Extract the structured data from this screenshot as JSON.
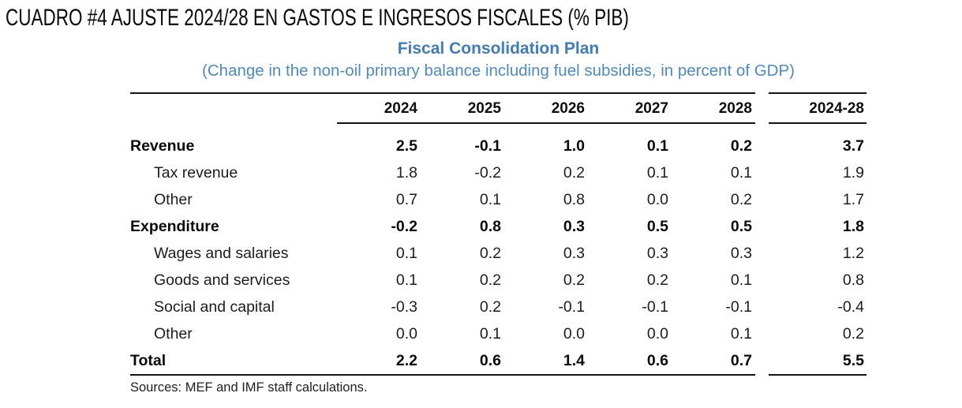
{
  "page": {
    "heading": "CUADRO #4 AJUSTE 2024/28 EN GASTOS E INGRESOS FISCALES (% PIB)"
  },
  "chart_data": {
    "type": "table",
    "title": "Fiscal Consolidation Plan",
    "subtitle": "(Change in the non-oil primary balance including fuel subsidies, in percent of GDP)",
    "columns": [
      "2024",
      "2025",
      "2026",
      "2027",
      "2028",
      "2024-28"
    ],
    "rows": [
      {
        "label": "Revenue",
        "bold": true,
        "indent": false,
        "values": [
          "2.5",
          "-0.1",
          "1.0",
          "0.1",
          "0.2",
          "3.7"
        ]
      },
      {
        "label": "Tax revenue",
        "bold": false,
        "indent": true,
        "values": [
          "1.8",
          "-0.2",
          "0.2",
          "0.1",
          "0.1",
          "1.9"
        ]
      },
      {
        "label": "Other",
        "bold": false,
        "indent": true,
        "values": [
          "0.7",
          "0.1",
          "0.8",
          "0.0",
          "0.2",
          "1.7"
        ]
      },
      {
        "label": "Expenditure",
        "bold": true,
        "indent": false,
        "values": [
          "-0.2",
          "0.8",
          "0.3",
          "0.5",
          "0.5",
          "1.8"
        ]
      },
      {
        "label": "Wages and salaries",
        "bold": false,
        "indent": true,
        "values": [
          "0.1",
          "0.2",
          "0.3",
          "0.3",
          "0.3",
          "1.2"
        ]
      },
      {
        "label": "Goods and services",
        "bold": false,
        "indent": true,
        "values": [
          "0.1",
          "0.2",
          "0.2",
          "0.2",
          "0.1",
          "0.8"
        ]
      },
      {
        "label": "Social and capital",
        "bold": false,
        "indent": true,
        "values": [
          "-0.3",
          "0.2",
          "-0.1",
          "-0.1",
          "-0.1",
          "-0.4"
        ]
      },
      {
        "label": "Other",
        "bold": false,
        "indent": true,
        "values": [
          "0.0",
          "0.1",
          "0.0",
          "0.0",
          "0.1",
          "0.2"
        ]
      },
      {
        "label": "Total",
        "bold": true,
        "indent": false,
        "values": [
          "2.2",
          "0.6",
          "1.4",
          "0.6",
          "0.7",
          "5.5"
        ]
      }
    ],
    "source": "Sources: MEF and IMF staff calculations.",
    "legend_position": "none",
    "grid": "horizontal-rules-only"
  },
  "colors": {
    "title_blue": "#3E7CBB",
    "subtitle_blue": "#4E8AC4",
    "text": "#1C1C1C",
    "rule": "#141414"
  }
}
